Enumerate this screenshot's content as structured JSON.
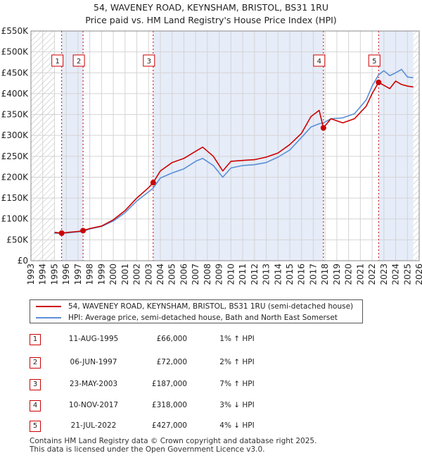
{
  "chart_data": {
    "type": "line",
    "title": "54, WAVENEY ROAD, KEYNSHAM, BRISTOL, BS31 1RU",
    "subtitle": "Price paid vs. HM Land Registry's House Price Index (HPI)",
    "xlim": [
      1993,
      2026
    ],
    "ylim": [
      0,
      550000
    ],
    "x_ticks": [
      "1993",
      "1994",
      "1995",
      "1996",
      "1997",
      "1998",
      "1999",
      "2000",
      "2001",
      "2002",
      "2003",
      "2004",
      "2005",
      "2006",
      "2007",
      "2008",
      "2009",
      "2010",
      "2011",
      "2012",
      "2013",
      "2014",
      "2015",
      "2016",
      "2017",
      "2018",
      "2019",
      "2020",
      "2021",
      "2022",
      "2023",
      "2024",
      "2025",
      "2026"
    ],
    "y_ticks": [
      {
        "value": 0,
        "label": "£0"
      },
      {
        "value": 50000,
        "label": "£50K"
      },
      {
        "value": 100000,
        "label": "£100K"
      },
      {
        "value": 150000,
        "label": "£150K"
      },
      {
        "value": 200000,
        "label": "£200K"
      },
      {
        "value": 250000,
        "label": "£250K"
      },
      {
        "value": 300000,
        "label": "£300K"
      },
      {
        "value": 350000,
        "label": "£350K"
      },
      {
        "value": 400000,
        "label": "£400K"
      },
      {
        "value": 450000,
        "label": "£450K"
      },
      {
        "value": 500000,
        "label": "£500K"
      },
      {
        "value": 550000,
        "label": "£550K"
      }
    ],
    "grid": true,
    "hatched_ranges": [
      [
        1993,
        1995.0
      ],
      [
        2025.5,
        2026
      ]
    ],
    "shaded_ranges": [
      [
        1995.61,
        1997.43
      ],
      [
        2003.39,
        2017.86
      ],
      [
        2022.55,
        2025.5
      ]
    ],
    "series": [
      {
        "name": "54, WAVENEY ROAD, KEYNSHAM, BRISTOL, BS31 1RU (semi-detached house)",
        "color": "#cc0000",
        "points": [
          [
            1995.0,
            68000
          ],
          [
            1995.61,
            66000
          ],
          [
            1996.2,
            68000
          ],
          [
            1997.0,
            70000
          ],
          [
            1997.43,
            72000
          ],
          [
            1998.0,
            77000
          ],
          [
            1999.0,
            83000
          ],
          [
            2000.0,
            98000
          ],
          [
            2001.0,
            120000
          ],
          [
            2002.0,
            150000
          ],
          [
            2003.0,
            175000
          ],
          [
            2003.39,
            187000
          ],
          [
            2004.0,
            215000
          ],
          [
            2005.0,
            235000
          ],
          [
            2006.0,
            245000
          ],
          [
            2007.0,
            262000
          ],
          [
            2007.6,
            272000
          ],
          [
            2008.5,
            250000
          ],
          [
            2009.3,
            215000
          ],
          [
            2010.0,
            238000
          ],
          [
            2011.0,
            240000
          ],
          [
            2012.0,
            242000
          ],
          [
            2013.0,
            248000
          ],
          [
            2014.0,
            258000
          ],
          [
            2015.0,
            278000
          ],
          [
            2016.0,
            305000
          ],
          [
            2016.8,
            345000
          ],
          [
            2017.5,
            360000
          ],
          [
            2017.86,
            318000
          ],
          [
            2018.5,
            340000
          ],
          [
            2019.5,
            330000
          ],
          [
            2020.5,
            340000
          ],
          [
            2021.5,
            370000
          ],
          [
            2022.0,
            400000
          ],
          [
            2022.55,
            427000
          ],
          [
            2023.0,
            420000
          ],
          [
            2023.5,
            412000
          ],
          [
            2024.0,
            430000
          ],
          [
            2024.5,
            422000
          ],
          [
            2025.0,
            418000
          ],
          [
            2025.5,
            416000
          ]
        ]
      },
      {
        "name": "HPI: Average price, semi-detached house, Bath and North East Somerset",
        "color": "#5b8fd6",
        "points": [
          [
            1995.0,
            66000
          ],
          [
            1995.61,
            65500
          ],
          [
            1996.2,
            67000
          ],
          [
            1997.0,
            69000
          ],
          [
            1997.43,
            70500
          ],
          [
            1998.0,
            76000
          ],
          [
            1999.0,
            82000
          ],
          [
            2000.0,
            95000
          ],
          [
            2001.0,
            115000
          ],
          [
            2002.0,
            143000
          ],
          [
            2003.0,
            165000
          ],
          [
            2003.39,
            174000
          ],
          [
            2004.0,
            198000
          ],
          [
            2005.0,
            210000
          ],
          [
            2006.0,
            220000
          ],
          [
            2007.0,
            238000
          ],
          [
            2007.6,
            245000
          ],
          [
            2008.5,
            228000
          ],
          [
            2009.3,
            200000
          ],
          [
            2010.0,
            222000
          ],
          [
            2011.0,
            228000
          ],
          [
            2012.0,
            230000
          ],
          [
            2013.0,
            235000
          ],
          [
            2014.0,
            248000
          ],
          [
            2015.0,
            265000
          ],
          [
            2016.0,
            295000
          ],
          [
            2016.8,
            320000
          ],
          [
            2017.5,
            328000
          ],
          [
            2017.86,
            330000
          ],
          [
            2018.5,
            340000
          ],
          [
            2019.5,
            342000
          ],
          [
            2020.5,
            352000
          ],
          [
            2021.5,
            385000
          ],
          [
            2022.0,
            418000
          ],
          [
            2022.55,
            445000
          ],
          [
            2023.0,
            455000
          ],
          [
            2023.5,
            443000
          ],
          [
            2024.0,
            450000
          ],
          [
            2024.5,
            458000
          ],
          [
            2025.0,
            440000
          ],
          [
            2025.5,
            438000
          ]
        ]
      }
    ],
    "sales": [
      {
        "label": "1",
        "x": 1995.61,
        "y": 66000
      },
      {
        "label": "2",
        "x": 1997.43,
        "y": 72000
      },
      {
        "label": "3",
        "x": 2003.39,
        "y": 187000
      },
      {
        "label": "4",
        "x": 2017.86,
        "y": 318000
      },
      {
        "label": "5",
        "x": 2022.55,
        "y": 427000
      }
    ]
  },
  "legend": {
    "property_label": "54, WAVENEY ROAD, KEYNSHAM, BRISTOL, BS31 1RU (semi-detached house)",
    "hpi_label": "HPI: Average price, semi-detached house, Bath and North East Somerset",
    "property_color": "#cc0000",
    "hpi_color": "#5b8fd6"
  },
  "transactions": [
    {
      "num": "1",
      "date": "11-AUG-1995",
      "price": "£66,000",
      "hpi": "1% ↑ HPI"
    },
    {
      "num": "2",
      "date": "06-JUN-1997",
      "price": "£72,000",
      "hpi": "2% ↑ HPI"
    },
    {
      "num": "3",
      "date": "23-MAY-2003",
      "price": "£187,000",
      "hpi": "7% ↑ HPI"
    },
    {
      "num": "4",
      "date": "10-NOV-2017",
      "price": "£318,000",
      "hpi": "3% ↓ HPI"
    },
    {
      "num": "5",
      "date": "21-JUL-2022",
      "price": "£427,000",
      "hpi": "4% ↓ HPI"
    }
  ],
  "footer": {
    "line1": "Contains HM Land Registry data © Crown copyright and database right 2025.",
    "line2": "This data is licensed under the Open Government Licence v3.0."
  }
}
